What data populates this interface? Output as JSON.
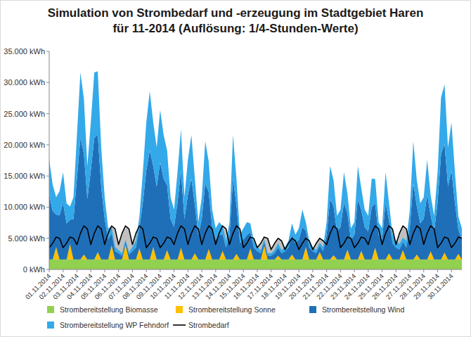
{
  "chart_data": {
    "type": "area",
    "title": "Simulation von Strombedarf und -erzeugung im Stadtgebiet Haren für 11-2014 (Auflösung: 1/4-Stunden-Werte)",
    "stacked": true,
    "grid": false,
    "legend": "bottom",
    "ylim": [
      0,
      35000
    ],
    "yticks": [
      {
        "value": 0,
        "label": "0 kWh"
      },
      {
        "value": 5000,
        "label": "5.000 kWh"
      },
      {
        "value": 10000,
        "label": "10.000 kWh"
      },
      {
        "value": 15000,
        "label": "15.000 kWh"
      },
      {
        "value": 20000,
        "label": "20.000 kWh"
      },
      {
        "value": 25000,
        "label": "25.000 kWh"
      },
      {
        "value": 30000,
        "label": "30.000 kWh"
      },
      {
        "value": 35000,
        "label": "35.000 kWh"
      }
    ],
    "categories": [
      "01.11.2014",
      null,
      null,
      null,
      "02.11.2014",
      null,
      null,
      null,
      "03.11.2014",
      null,
      null,
      null,
      "04.11.2014",
      null,
      null,
      null,
      "05.11.2014",
      null,
      null,
      null,
      "06.11.2014",
      null,
      null,
      null,
      "07.11.2014",
      null,
      null,
      null,
      "08.11.2014",
      null,
      null,
      null,
      "09.11.2014",
      null,
      null,
      null,
      "10.11.2014",
      null,
      null,
      null,
      "11.11.2014",
      null,
      null,
      null,
      "12.11.2014",
      null,
      null,
      null,
      "13.11.2014",
      null,
      null,
      null,
      "14.11.2014",
      null,
      null,
      null,
      "15.11.2014",
      null,
      null,
      null,
      "16.11.2014",
      null,
      null,
      null,
      "17.11.2014",
      null,
      null,
      null,
      "18.11.2014",
      null,
      null,
      null,
      "19.11.2014",
      null,
      null,
      null,
      "20.11.2014",
      null,
      null,
      null,
      "21.11.2014",
      null,
      null,
      null,
      "22.11.2014",
      null,
      null,
      null,
      "23.11.2014",
      null,
      null,
      null,
      "24.11.2014",
      null,
      null,
      null,
      "25.11.2014",
      null,
      null,
      null,
      "26.11.2014",
      null,
      null,
      null,
      "27.11.2014",
      null,
      null,
      null,
      "28.11.2014",
      null,
      null,
      null,
      "29.11.2014",
      null,
      null,
      null,
      "30.11.2014",
      null,
      null,
      null
    ],
    "series": [
      {
        "name": "Strombereitstellung Biomasse",
        "type": "area",
        "color": "#92d050",
        "values": [
          1600,
          1600,
          1600,
          1600,
          1600,
          1600,
          1600,
          1600,
          1600,
          1600,
          1600,
          1600,
          1600,
          1600,
          1600,
          1600,
          1600,
          1600,
          1600,
          1600,
          1600,
          1600,
          1600,
          1600,
          1600,
          1600,
          1600,
          1600,
          1600,
          1600,
          1600,
          1600,
          1600,
          1600,
          1600,
          1600,
          1600,
          1600,
          1600,
          1600,
          1600,
          1600,
          1600,
          1600,
          1600,
          1600,
          1600,
          1600,
          1600,
          1600,
          1600,
          1600,
          1600,
          1600,
          1600,
          1600,
          1600,
          1600,
          1600,
          1600,
          1600,
          1600,
          1600,
          1600,
          1600,
          1600,
          1600,
          1600,
          1600,
          1600,
          1600,
          1600,
          1600,
          1600,
          1600,
          1600,
          1600,
          1600,
          1600,
          1600,
          1600,
          1600,
          1600,
          1600,
          1600,
          1600,
          1600,
          1600,
          1600,
          1600,
          1600,
          1600,
          1600,
          1600,
          1600,
          1600,
          1600,
          1600,
          1600,
          1600,
          1600,
          1600,
          1600,
          1600,
          1600,
          1600,
          1600,
          1600,
          1600,
          1600,
          1600,
          1600,
          1600,
          1600,
          1600,
          1600,
          1600,
          1600,
          1600,
          1600
        ]
      },
      {
        "name": "Strombereitstellung Sonne",
        "type": "area",
        "color": "#ffc000",
        "values": [
          0,
          0,
          2000,
          0,
          0,
          0,
          2500,
          0,
          0,
          0,
          800,
          0,
          0,
          0,
          1200,
          0,
          0,
          0,
          2300,
          0,
          0,
          0,
          2400,
          0,
          0,
          0,
          1800,
          0,
          0,
          0,
          2000,
          0,
          0,
          0,
          1500,
          0,
          0,
          0,
          1900,
          0,
          0,
          0,
          1000,
          0,
          0,
          0,
          1700,
          0,
          0,
          0,
          1400,
          0,
          0,
          0,
          900,
          0,
          0,
          0,
          1800,
          0,
          0,
          0,
          2200,
          0,
          0,
          0,
          600,
          0,
          0,
          0,
          800,
          0,
          0,
          0,
          2000,
          0,
          0,
          0,
          1200,
          0,
          0,
          0,
          700,
          0,
          0,
          0,
          1600,
          0,
          0,
          0,
          1400,
          0,
          0,
          0,
          1900,
          0,
          0,
          0,
          1000,
          0,
          0,
          0,
          1500,
          0,
          0,
          0,
          800,
          0,
          0,
          0,
          1300,
          0,
          0,
          0,
          1100,
          0,
          0,
          0,
          900,
          0
        ]
      },
      {
        "name": "Strombereitstellung Wind",
        "type": "area",
        "color": "#1f6fb8",
        "values": [
          10400,
          7800,
          5200,
          7100,
          9100,
          5800,
          3900,
          6500,
          13000,
          19500,
          16200,
          9700,
          14300,
          19500,
          18800,
          11700,
          6500,
          3200,
          1900,
          1300,
          1000,
          600,
          500,
          800,
          1300,
          1900,
          3200,
          9100,
          14300,
          17500,
          13000,
          11700,
          15600,
          13000,
          10400,
          6500,
          5200,
          9100,
          12300,
          6500,
          10400,
          13000,
          7800,
          3900,
          6500,
          12300,
          9100,
          5200,
          3200,
          3900,
          2600,
          1900,
          3900,
          13000,
          7800,
          2600,
          3200,
          3900,
          2600,
          1900,
          1300,
          1000,
          600,
          600,
          600,
          1000,
          1300,
          1000,
          1300,
          1900,
          3200,
          2600,
          3200,
          5200,
          2600,
          1900,
          1300,
          1000,
          1000,
          1300,
          3900,
          9700,
          7800,
          4500,
          5200,
          9100,
          5800,
          3200,
          3900,
          9700,
          6500,
          5200,
          4500,
          8400,
          7100,
          3900,
          3200,
          9100,
          5200,
          2600,
          1900,
          1600,
          1300,
          1900,
          5200,
          12300,
          7800,
          5800,
          6500,
          10400,
          5800,
          4500,
          9100,
          16900,
          17500,
          11700,
          14300,
          9100,
          3900,
          3200
        ]
      },
      {
        "name": "Strombereitstellung WP Fehndorf",
        "type": "area",
        "color": "#33a9ea",
        "values": [
          5600,
          4200,
          2800,
          3900,
          4900,
          3200,
          2100,
          3500,
          7000,
          10500,
          8800,
          5300,
          7700,
          10500,
          10200,
          6300,
          3500,
          1800,
          1100,
          700,
          500,
          400,
          300,
          400,
          700,
          1100,
          1800,
          4900,
          7700,
          9500,
          7000,
          6300,
          8400,
          7000,
          5600,
          3500,
          2800,
          4900,
          6700,
          3500,
          5600,
          7000,
          4200,
          2100,
          3500,
          6700,
          4900,
          2800,
          1800,
          2100,
          1400,
          1100,
          2100,
          7000,
          4200,
          1400,
          1800,
          2100,
          1400,
          1100,
          700,
          500,
          400,
          400,
          400,
          500,
          700,
          500,
          700,
          1100,
          1800,
          1400,
          1800,
          2800,
          1400,
          1100,
          700,
          500,
          500,
          700,
          2100,
          5300,
          4200,
          2500,
          2800,
          4900,
          3200,
          1800,
          2100,
          5300,
          3500,
          2800,
          2500,
          4600,
          3900,
          2100,
          1800,
          4900,
          2800,
          1400,
          1100,
          900,
          700,
          1100,
          2800,
          6700,
          4200,
          3200,
          3500,
          5600,
          3200,
          2500,
          4900,
          9100,
          9500,
          6300,
          7700,
          4900,
          2100,
          1800
        ]
      },
      {
        "name": "Strombedarf",
        "type": "line",
        "color": "#000000",
        "values": [
          3500,
          4200,
          5200,
          5000,
          3500,
          4200,
          5200,
          5000,
          4000,
          5800,
          7000,
          6500,
          4000,
          5800,
          7000,
          6500,
          4000,
          5800,
          7000,
          6500,
          4000,
          5800,
          7000,
          6500,
          4000,
          5800,
          7000,
          6500,
          3500,
          4200,
          5200,
          5000,
          3500,
          4200,
          5200,
          5000,
          4000,
          5800,
          7000,
          6500,
          4000,
          5800,
          7000,
          6500,
          4000,
          5800,
          7000,
          6500,
          4000,
          5800,
          7000,
          6500,
          4000,
          5800,
          7000,
          6500,
          3500,
          4200,
          5200,
          5000,
          3500,
          4200,
          5200,
          5000,
          3200,
          4200,
          5000,
          4600,
          3200,
          4200,
          5000,
          4600,
          3200,
          4200,
          5000,
          4600,
          3200,
          4200,
          5000,
          4600,
          4000,
          5800,
          7000,
          6500,
          3500,
          4200,
          5200,
          5000,
          3500,
          4200,
          5200,
          5000,
          4000,
          5800,
          7000,
          6500,
          4000,
          5800,
          7000,
          6500,
          4000,
          5800,
          7000,
          6500,
          4000,
          5800,
          7000,
          6500,
          4000,
          5800,
          7000,
          6500,
          3500,
          4200,
          5200,
          5000,
          3500,
          4200,
          5200,
          5000
        ]
      }
    ]
  }
}
